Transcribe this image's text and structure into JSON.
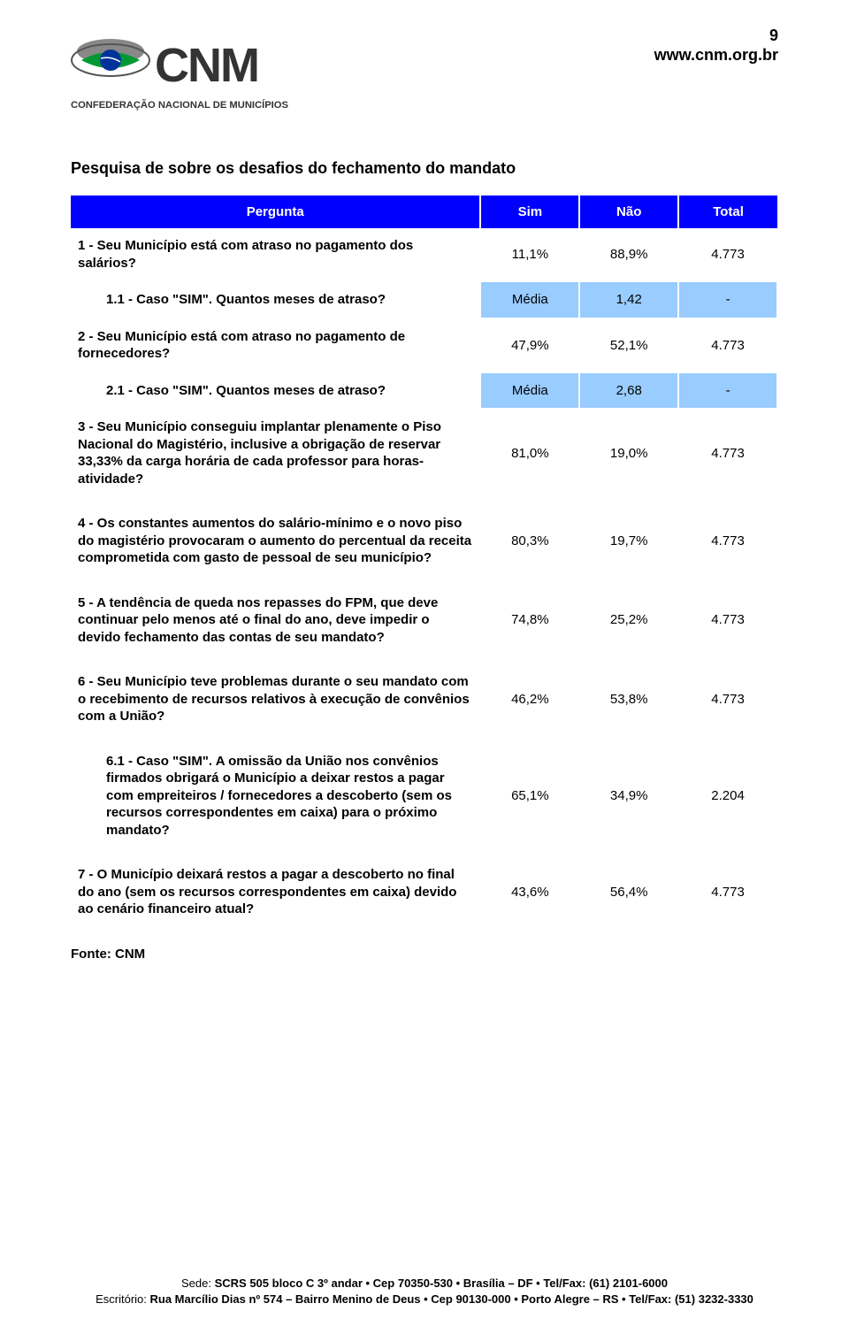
{
  "page_number": "9",
  "url": "www.cnm.org.br",
  "logo": {
    "text_main": "CNM",
    "subtitle": "CONFEDERAÇÃO NACIONAL DE MUNICÍPIOS"
  },
  "title": "Pesquisa de sobre os desafios do fechamento do mandato",
  "table": {
    "header_bg": "#0000ff",
    "header_fg": "#ffffff",
    "media_bg": "#99ccff",
    "columns": [
      "Pergunta",
      "Sim",
      "Não",
      "Total"
    ],
    "rows": [
      {
        "type": "q",
        "text": "1 - Seu Município está com atraso no pagamento dos salários?",
        "c1": "11,1%",
        "c2": "88,9%",
        "c3": "4.773"
      },
      {
        "type": "sub_media",
        "text": "1.1 - Caso \"SIM\". Quantos meses de atraso?",
        "c1": "Média",
        "c2": "1,42",
        "c3": "-"
      },
      {
        "type": "q",
        "text": "2 - Seu Município está com atraso no pagamento de fornecedores?",
        "c1": "47,9%",
        "c2": "52,1%",
        "c3": "4.773"
      },
      {
        "type": "sub_media",
        "text": "2.1 - Caso \"SIM\". Quantos meses de atraso?",
        "c1": "Média",
        "c2": "2,68",
        "c3": "-"
      },
      {
        "type": "q",
        "text": "3 - Seu Município conseguiu implantar plenamente o Piso Nacional do Magistério, inclusive a obrigação de reservar 33,33% da carga horária de cada professor para horas-atividade?",
        "c1": "81,0%",
        "c2": "19,0%",
        "c3": "4.773"
      },
      {
        "type": "spacer"
      },
      {
        "type": "q",
        "text": "4 - Os constantes aumentos do salário-mínimo e o novo piso do magistério provocaram o aumento do percentual da receita comprometida com gasto de pessoal de seu município?",
        "c1": "80,3%",
        "c2": "19,7%",
        "c3": "4.773"
      },
      {
        "type": "spacer"
      },
      {
        "type": "q",
        "text": "5 - A tendência de queda nos repasses do FPM, que deve continuar pelo menos até o final do ano, deve impedir o devido fechamento das contas de seu mandato?",
        "c1": "74,8%",
        "c2": "25,2%",
        "c3": "4.773"
      },
      {
        "type": "spacer"
      },
      {
        "type": "q",
        "text": "6 - Seu Município teve problemas durante o seu mandato com o recebimento de recursos relativos à execução de convênios com a União?",
        "c1": "46,2%",
        "c2": "53,8%",
        "c3": "4.773"
      },
      {
        "type": "spacer"
      },
      {
        "type": "sub",
        "text": "6.1 - Caso \"SIM\". A omissão da União nos convênios firmados obrigará o Município a deixar restos a pagar com empreiteiros / fornecedores a descoberto (sem os recursos correspondentes em caixa) para o próximo mandato?",
        "c1": "65,1%",
        "c2": "34,9%",
        "c3": "2.204"
      },
      {
        "type": "spacer"
      },
      {
        "type": "q",
        "text": "7 - O Município deixará restos a pagar a descoberto no final do ano (sem os recursos correspondentes em caixa) devido ao cenário financeiro atual?",
        "c1": "43,6%",
        "c2": "56,4%",
        "c3": "4.773"
      }
    ]
  },
  "fonte": "Fonte: CNM",
  "footer": {
    "line1_pre": "Sede: ",
    "line1_bold": "SCRS 505 bloco C 3º andar • Cep 70350-530 • Brasília – DF • Tel/Fax: (61) 2101-6000",
    "line2_pre": "Escritório: ",
    "line2_bold": "Rua Marcílio Dias nº 574 – Bairro Menino de Deus • Cep 90130-000 • Porto Alegre – RS • Tel/Fax: (51) 3232-3330"
  }
}
